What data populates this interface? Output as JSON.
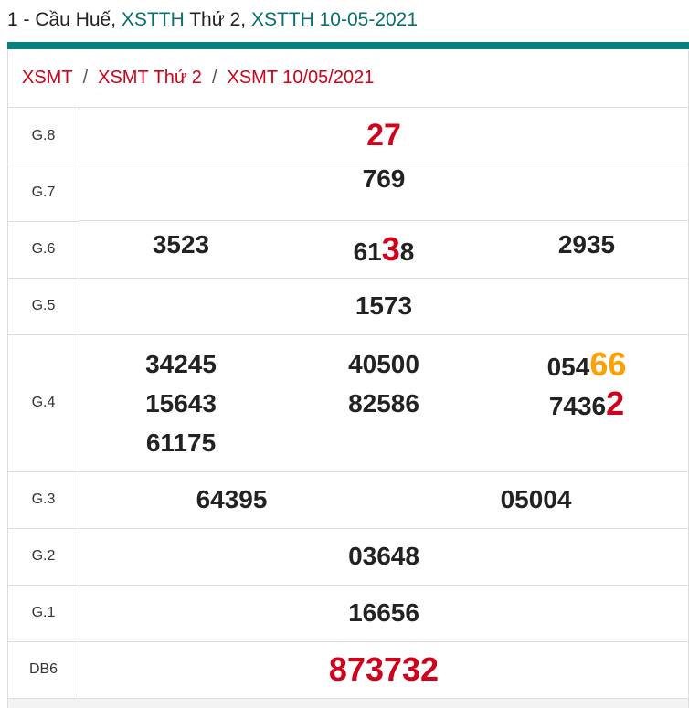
{
  "title": {
    "prefix": "1 - Cầu Huế, ",
    "link1": "XSTTH",
    "mid": " Thứ 2, ",
    "link2": "XSTTH 10-05-2021"
  },
  "breadcrumb": [
    "XSMT",
    "XSMT Thứ 2",
    "XSMT 10/05/2021"
  ],
  "colors": {
    "accent": "#0a7f80",
    "red": "#d0021b",
    "orange": "#ff9f00"
  },
  "results": {
    "g8": {
      "label": "G.8",
      "value": "27"
    },
    "g7": {
      "label": "G.7",
      "value": "769"
    },
    "g6": {
      "label": "G.6",
      "values": [
        "3523",
        {
          "pre": "61",
          "hl": "3",
          "post": "8"
        },
        "2935"
      ]
    },
    "g5": {
      "label": "G.5",
      "value": "1573"
    },
    "g4": {
      "label": "G.4",
      "values": [
        "34245",
        "15643",
        "61175",
        "40500",
        "82586",
        {
          "pre": "054",
          "hl": "66"
        },
        {
          "pre": "7436",
          "hl": "2"
        }
      ]
    },
    "g3": {
      "label": "G.3",
      "values": [
        "64395",
        "05004"
      ]
    },
    "g2": {
      "label": "G.2",
      "value": "03648"
    },
    "g1": {
      "label": "G.1",
      "value": "16656"
    },
    "db": {
      "label": "DB6",
      "value": "873732"
    }
  }
}
